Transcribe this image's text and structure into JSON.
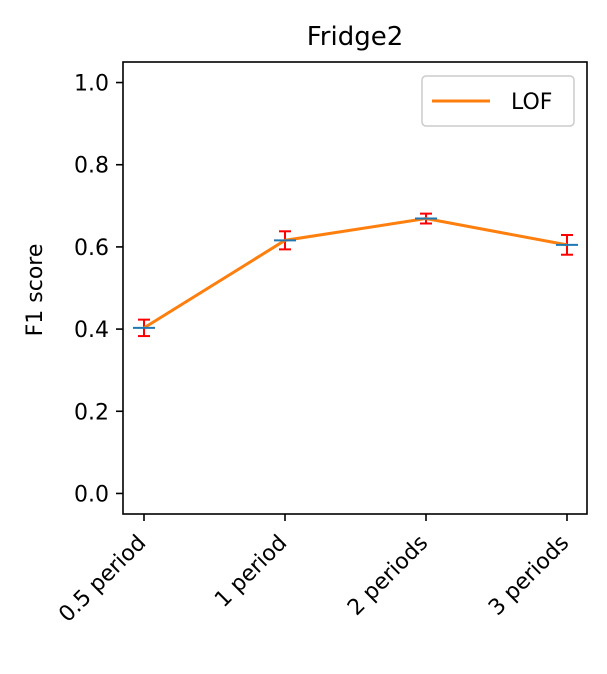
{
  "chart_data": {
    "type": "line",
    "title": "Fridge2",
    "xlabel": "",
    "ylabel": "F1 score",
    "categories": [
      "0.5 period",
      "1 period",
      "2 periods",
      "3 periods"
    ],
    "ylim": [
      -0.05,
      1.05
    ],
    "yticks": [
      "0.0",
      "0.2",
      "0.4",
      "0.6",
      "0.8",
      "1.0"
    ],
    "grid": false,
    "legend_position": "top-right",
    "series": [
      {
        "name": "LOF",
        "color": "#ff7f0e",
        "values": [
          0.403,
          0.616,
          0.669,
          0.605
        ],
        "error": [
          0.02,
          0.022,
          0.012,
          0.024
        ]
      }
    ],
    "errorbar_color": "#ff0000",
    "marker_color": "#1f77b4"
  }
}
